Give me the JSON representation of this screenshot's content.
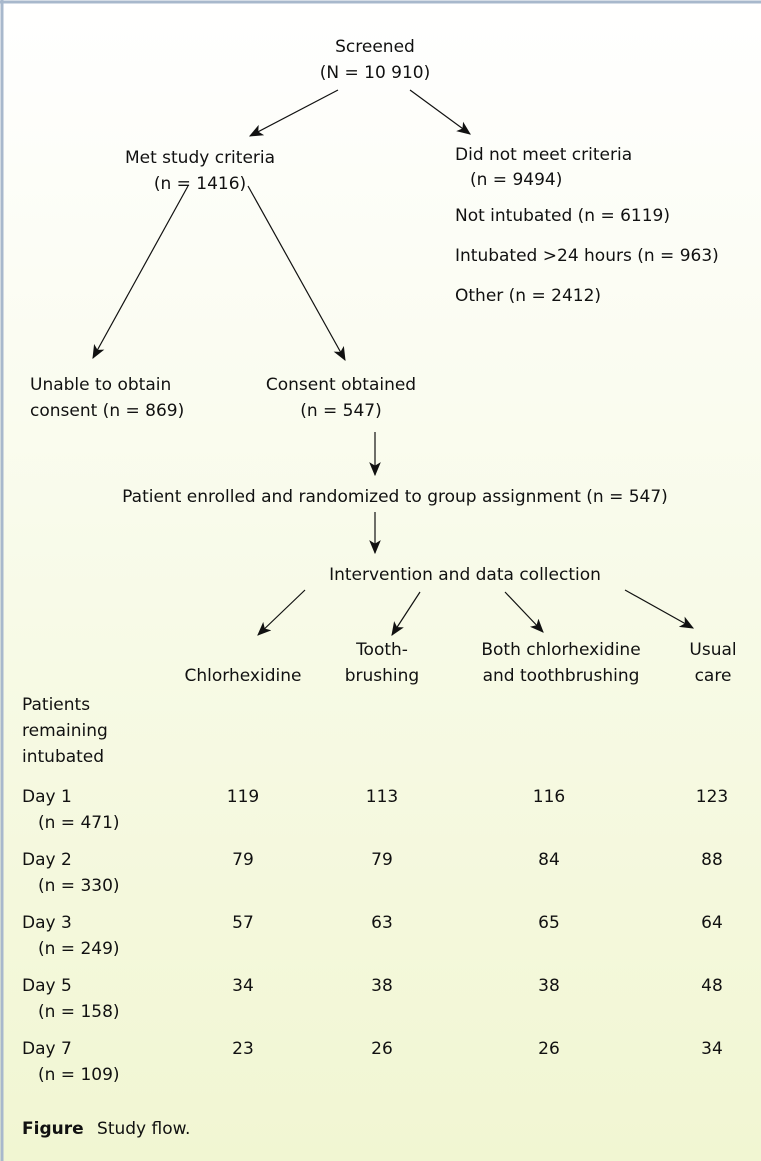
{
  "flow": {
    "screened": [
      "Screened",
      "(N = 10 910)"
    ],
    "met_criteria": [
      "Met study criteria",
      "(n = 1416)"
    ],
    "not_met": [
      "Did not meet criteria",
      "(n = 9494)"
    ],
    "not_met_reasons": [
      "Not intubated (n = 6119)",
      "Intubated >24 hours (n = 963)",
      "Other (n = 2412)"
    ],
    "no_consent": [
      "Unable to obtain",
      "consent (n = 869)"
    ],
    "consent": [
      "Consent obtained",
      "(n = 547)"
    ],
    "enrolled": "Patient enrolled and randomized to group assignment (n = 547)",
    "intervention": "Intervention and data collection"
  },
  "table": {
    "row_header": [
      "Patients",
      "remaining",
      "intubated"
    ],
    "columns": [
      [
        "Chlorhexidine"
      ],
      [
        "Tooth-",
        "brushing"
      ],
      [
        "Both chlorhexidine",
        "and toothbrushing"
      ],
      [
        "Usual",
        "care"
      ]
    ],
    "rows": [
      {
        "label": "Day 1",
        "n": "(n = 471)",
        "values": [
          119,
          113,
          116,
          123
        ]
      },
      {
        "label": "Day 2",
        "n": "(n = 330)",
        "values": [
          79,
          79,
          84,
          88
        ]
      },
      {
        "label": "Day 3",
        "n": "(n = 249)",
        "values": [
          57,
          63,
          65,
          64
        ]
      },
      {
        "label": "Day 5",
        "n": "(n = 158)",
        "values": [
          34,
          38,
          38,
          48
        ]
      },
      {
        "label": "Day 7",
        "n": "(n = 109)",
        "values": [
          23,
          26,
          26,
          34
        ]
      }
    ]
  },
  "caption": {
    "label": "Figure",
    "text": "Study flow."
  }
}
